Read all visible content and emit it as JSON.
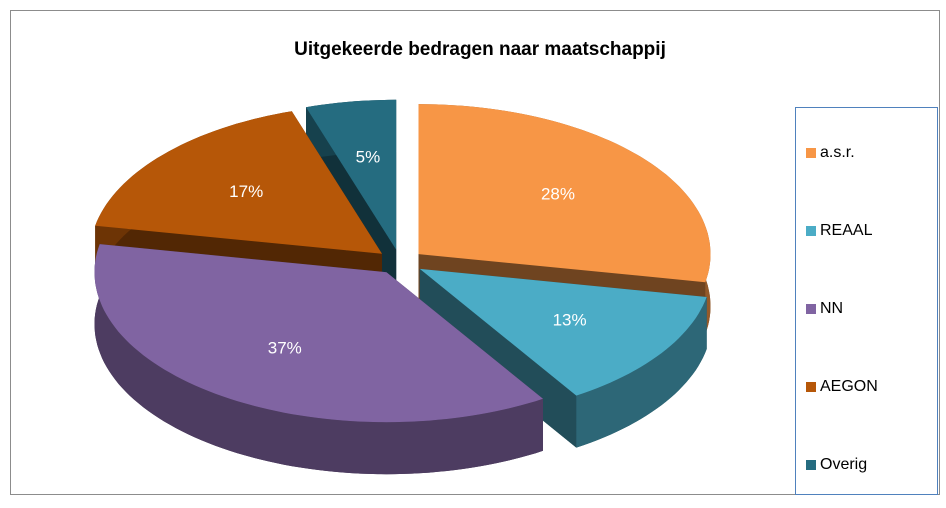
{
  "chart_data": {
    "type": "pie",
    "title": "Uitgekeerde bedragen naar maatschappij",
    "categories": [
      "a.s.r.",
      "REAAL",
      "NN",
      "AEGON",
      "Overig"
    ],
    "values": [
      28,
      13,
      37,
      17,
      5
    ],
    "value_labels": [
      "28%",
      "13%",
      "37%",
      "17%",
      "5%"
    ],
    "colors": [
      "#f79646",
      "#4bacc6",
      "#8064a2",
      "#b65708",
      "#256c80"
    ],
    "legend": "right"
  }
}
